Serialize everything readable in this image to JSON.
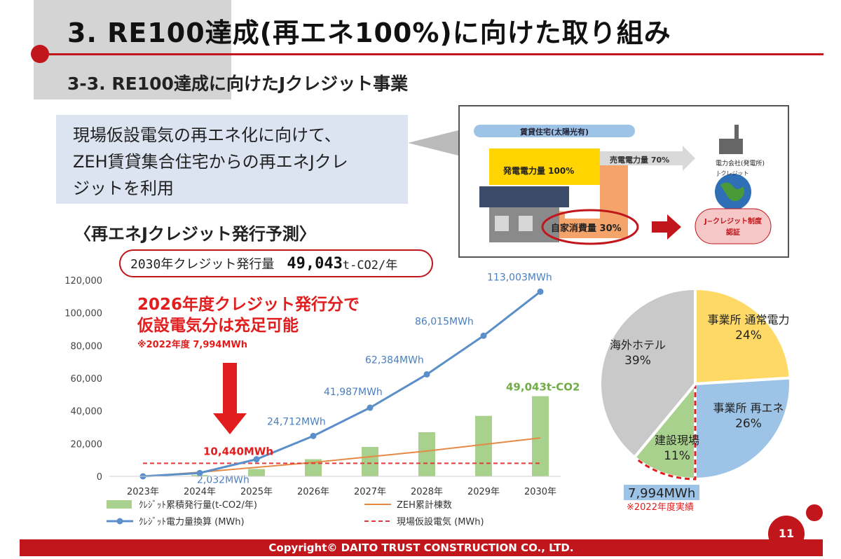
{
  "header": {
    "title": "3. RE100達成(再エネ100%)に向けた取り組み",
    "subtitle": "3-3. RE100達成に向けたJクレジット事業"
  },
  "intro": {
    "lines": [
      "現場仮設電気の再エネ化に向けて、",
      "ZEH賃貸集合住宅からの再エネJクレ",
      "ジットを利用"
    ]
  },
  "diagram": {
    "banner": "賃貸住宅(太陽光有)",
    "generation": "発電電力量 100%",
    "sold": "売電電力量 70%",
    "self_consumption": "自家消費量 30%",
    "utility": "電力会社(発電所)",
    "globe_label": "J-クレジット",
    "certification": "J−クレジット制度\n認証"
  },
  "chart_title": "〈再エネJクレジット発行予測〉",
  "badge": {
    "label": "2030年クレジット発行量",
    "value": "49,043",
    "unit": "t-CO2/年"
  },
  "annotation": {
    "line1": "2026年度クレジット発行分で",
    "line2": "仮設電気分は充足可能",
    "note": "※2022年度 7,994MWh"
  },
  "chart_data": [
    {
      "type": "bar",
      "title": "",
      "categories": [
        "2023年",
        "2024年",
        "2025年",
        "2026年",
        "2027年",
        "2028年",
        "2029年",
        "2030年"
      ],
      "ylim": [
        0,
        120000
      ],
      "yticks": [
        0,
        20000,
        40000,
        60000,
        80000,
        100000,
        120000
      ],
      "ytick_labels": [
        "0",
        "20,000",
        "40,000",
        "60,000",
        "80,000",
        "100,000",
        "120,000"
      ],
      "grid": false,
      "legend_position": "bottom",
      "series": [
        {
          "name": "ｸﾚｼﾞｯﾄ累積発行量(t-CO2/年)",
          "kind": "bar",
          "color": "#a9d18e",
          "values": [
            0,
            800,
            4500,
            10500,
            18000,
            27000,
            37000,
            49043
          ]
        },
        {
          "name": "ｸﾚｼﾞｯﾄ電力量換算 (MWh)",
          "kind": "line-marker",
          "color": "#5b8fc9",
          "values": [
            0,
            2032,
            10440,
            24712,
            41987,
            62384,
            86015,
            113003
          ],
          "labels": [
            "",
            "2,032MWh",
            "10,440MWh",
            "24,712MWh",
            "41,987MWh",
            "62,384MWh",
            "86,015MWh",
            "113,003MWh"
          ]
        },
        {
          "name": "ZEH累計棟数",
          "kind": "line",
          "color": "#e58a46",
          "values": [
            0,
            2500,
            5500,
            8500,
            12000,
            15500,
            19500,
            23500
          ]
        },
        {
          "name": "現場仮設電気 (MWh)",
          "kind": "dashed-line",
          "color": "#e03a3a",
          "values": [
            7994,
            7994,
            7994,
            7994,
            7994,
            7994,
            7994,
            7994
          ]
        }
      ],
      "end_label": "49,043t-CO2"
    },
    {
      "type": "pie",
      "slices": [
        {
          "label": "事業所 通常電力",
          "percent": "24%",
          "value": 24,
          "color": "#ffd966"
        },
        {
          "label": "事業所 再エネ",
          "percent": "26%",
          "value": 26,
          "color": "#9dc3e6"
        },
        {
          "label": "建設現場",
          "percent": "11%",
          "value": 11,
          "color": "#a9d18e"
        },
        {
          "label": "海外ホテル",
          "percent": "39%",
          "value": 39,
          "color": "#c9c9c9"
        }
      ],
      "footnote_value": "7,994MWh",
      "footnote": "※2022年度実績"
    }
  ],
  "footer": {
    "copyright": "Copyright© DAITO TRUST CONSTRUCTION CO., LTD.",
    "page": "11"
  }
}
